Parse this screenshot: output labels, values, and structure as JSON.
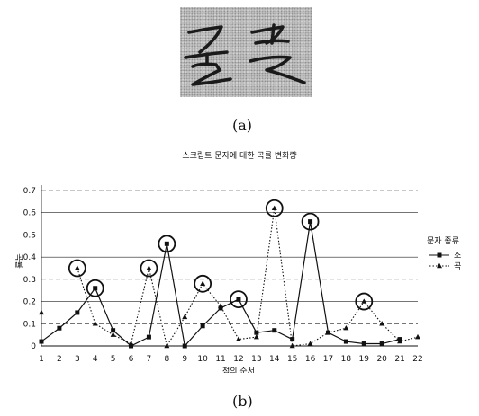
{
  "caption_a": "(a)",
  "caption_b": "(b)",
  "handwriting_note": "손글씨 문자 이미지",
  "chart_data": {
    "type": "line",
    "title": "스크립트 문자에 대한 곡률 변화량",
    "xlabel": "점의 순서",
    "ylabel": "곡률",
    "categories": [
      "1",
      "2",
      "3",
      "4",
      "5",
      "6",
      "7",
      "8",
      "9",
      "10",
      "11",
      "12",
      "13",
      "14",
      "15",
      "16",
      "17",
      "18",
      "19",
      "20",
      "21",
      "22"
    ],
    "ylim": [
      0,
      0.7
    ],
    "yticks": [
      "0",
      "0.1",
      "0.2",
      "0.3",
      "0.4",
      "0.5",
      "0.6",
      "0.7"
    ],
    "grid": true,
    "legend_title": "문자 종류",
    "legend_position": "right",
    "series": [
      {
        "name": "조",
        "style": "solid",
        "marker": "square",
        "values": [
          0.02,
          0.08,
          0.15,
          0.26,
          0.07,
          0.0,
          0.04,
          0.46,
          0.0,
          0.09,
          0.17,
          0.21,
          0.06,
          0.07,
          0.03,
          0.56,
          0.06,
          0.02,
          0.01,
          0.01,
          0.03,
          null
        ]
      },
      {
        "name": "곡",
        "style": "dotted",
        "marker": "triangle",
        "values": [
          0.15,
          null,
          0.35,
          0.1,
          0.05,
          0.01,
          0.35,
          0.0,
          0.13,
          0.28,
          0.18,
          0.03,
          0.04,
          0.62,
          0.0,
          0.01,
          0.06,
          0.08,
          0.2,
          0.1,
          0.02,
          0.04
        ]
      }
    ],
    "circled_points": [
      {
        "series": "곡",
        "x": "3"
      },
      {
        "series": "조",
        "x": "4"
      },
      {
        "series": "곡",
        "x": "7"
      },
      {
        "series": "조",
        "x": "8"
      },
      {
        "series": "곡",
        "x": "10"
      },
      {
        "series": "조",
        "x": "12"
      },
      {
        "series": "곡",
        "x": "14"
      },
      {
        "series": "조",
        "x": "16"
      },
      {
        "series": "곡",
        "x": "19"
      }
    ]
  }
}
